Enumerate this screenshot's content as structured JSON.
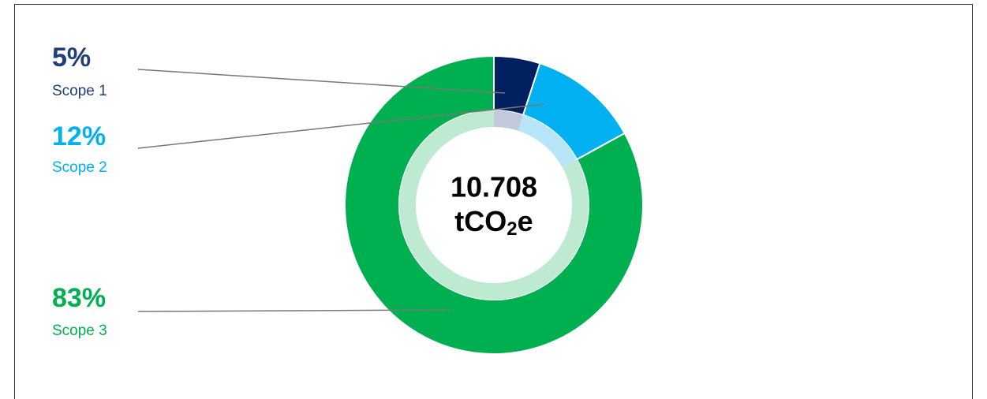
{
  "chart_data": {
    "type": "donut",
    "categories": [
      "Scope 1",
      "Scope 2",
      "Scope 3"
    ],
    "values": [
      5,
      12,
      83
    ],
    "value_labels": [
      "5%",
      "12%",
      "83%"
    ],
    "colors": [
      "#002060",
      "#00b0f0",
      "#00b050"
    ],
    "label_colors": [
      "#1f3f75",
      "#00b0f0",
      "#00b050"
    ],
    "inner_colors": [
      "#c3c9dc",
      "#b8e6f8",
      "#bfead2"
    ],
    "center_value": "10.708",
    "center_unit": [
      "tCO",
      "2",
      "e"
    ]
  }
}
